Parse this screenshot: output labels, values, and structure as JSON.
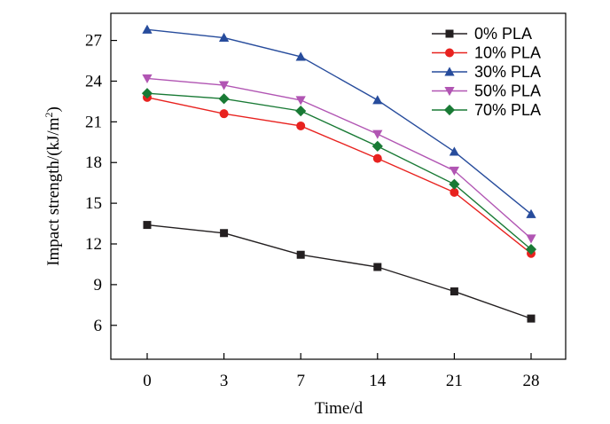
{
  "chart_data": {
    "type": "line",
    "categories": [
      "0",
      "3",
      "7",
      "14",
      "21",
      "28"
    ],
    "xlabel": "Time/d",
    "ylabel_main": "Impact strength/(kJ/m",
    "ylabel_sup": "2",
    "ylabel_end": ")",
    "ylim": [
      3.5,
      29
    ],
    "yticks": [
      6,
      9,
      12,
      15,
      18,
      21,
      24,
      27
    ],
    "legend_position": "top-right",
    "grid": false,
    "series": [
      {
        "name": "0% PLA",
        "color": "#231f20",
        "marker": "square",
        "values": [
          13.4,
          12.8,
          11.2,
          10.3,
          8.5,
          6.5
        ]
      },
      {
        "name": "10% PLA",
        "color": "#e8221f",
        "marker": "circle",
        "values": [
          22.8,
          21.6,
          20.7,
          18.3,
          15.8,
          11.3
        ]
      },
      {
        "name": "30% PLA",
        "color": "#274c9c",
        "marker": "triangle-up",
        "values": [
          27.8,
          27.2,
          25.8,
          22.6,
          18.8,
          14.2
        ]
      },
      {
        "name": "50% PLA",
        "color": "#b155b3",
        "marker": "triangle-down",
        "values": [
          24.2,
          23.7,
          22.6,
          20.1,
          17.4,
          12.4
        ]
      },
      {
        "name": "70% PLA",
        "color": "#197a35",
        "marker": "diamond",
        "values": [
          23.1,
          22.7,
          21.8,
          19.2,
          16.4,
          11.6
        ]
      }
    ]
  }
}
